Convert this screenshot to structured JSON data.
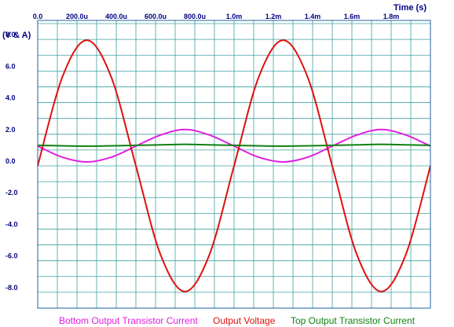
{
  "chart_data": {
    "type": "line",
    "xlabel": "Time  (s)",
    "ylabel": "(V & A)",
    "xlim": [
      0,
      0.002
    ],
    "ylim": [
      -9,
      9.2
    ],
    "grid": true,
    "legend_position": "bottom",
    "x_ticks": [
      {
        "value": 0,
        "label": "0.0"
      },
      {
        "value": 0.0002,
        "label": "200.0u"
      },
      {
        "value": 0.0004,
        "label": "400.0u"
      },
      {
        "value": 0.0006,
        "label": "600.0u"
      },
      {
        "value": 0.0008,
        "label": "800.0u"
      },
      {
        "value": 0.001,
        "label": "1.0m"
      },
      {
        "value": 0.0012,
        "label": "1.2m"
      },
      {
        "value": 0.0014,
        "label": "1.4m"
      },
      {
        "value": 0.0016,
        "label": "1.6m"
      },
      {
        "value": 0.0018,
        "label": "1.8m"
      }
    ],
    "y_ticks": [
      {
        "value": 8,
        "label": "8.0"
      },
      {
        "value": 6,
        "label": "6.0"
      },
      {
        "value": 4,
        "label": "4.0"
      },
      {
        "value": 2,
        "label": "2.0"
      },
      {
        "value": 0,
        "label": "0.0"
      },
      {
        "value": -2,
        "label": "-2.0"
      },
      {
        "value": -4,
        "label": "-4.0"
      },
      {
        "value": -6,
        "label": "-6.0"
      },
      {
        "value": -8,
        "label": "-8.0"
      }
    ],
    "series": [
      {
        "name": "Bottom Output Transistor Current",
        "color": "#e020e0",
        "x": [
          0,
          0.000125,
          0.00025,
          0.000375,
          0.0005,
          0.000625,
          0.00075,
          0.000875,
          0.001,
          0.001125,
          0.00125,
          0.001375,
          0.0015,
          0.001625,
          0.00175,
          0.001875,
          0.002
        ],
        "y": [
          1.25,
          0.55,
          0.25,
          0.55,
          1.25,
          1.95,
          2.3,
          1.95,
          1.25,
          0.55,
          0.25,
          0.55,
          1.25,
          1.95,
          2.3,
          1.95,
          1.25
        ]
      },
      {
        "name": "Output Voltage",
        "color": "#e01010",
        "x": [
          0,
          0.000125,
          0.00025,
          0.000375,
          0.0005,
          0.000625,
          0.00075,
          0.000875,
          0.001,
          0.001125,
          0.00125,
          0.001375,
          0.0015,
          0.001625,
          0.00175,
          0.001875,
          0.002
        ],
        "y": [
          0,
          5.6,
          7.95,
          5.6,
          0,
          -5.6,
          -7.95,
          -5.6,
          0,
          5.6,
          7.95,
          5.6,
          0,
          -5.6,
          -7.95,
          -5.6,
          0
        ]
      },
      {
        "name": "Top Output Transistor Current",
        "color": "#108010",
        "x": [
          0,
          0.000125,
          0.00025,
          0.000375,
          0.0005,
          0.000625,
          0.00075,
          0.000875,
          0.001,
          0.001125,
          0.00125,
          0.001375,
          0.0015,
          0.001625,
          0.00175,
          0.001875,
          0.002
        ],
        "y": [
          1.3,
          1.27,
          1.25,
          1.27,
          1.3,
          1.33,
          1.36,
          1.33,
          1.3,
          1.27,
          1.25,
          1.27,
          1.3,
          1.33,
          1.36,
          1.33,
          1.3
        ]
      }
    ]
  },
  "colors": {
    "axis_text": "#000080",
    "grid": "#40a0a0",
    "frame": "#2060a0"
  }
}
